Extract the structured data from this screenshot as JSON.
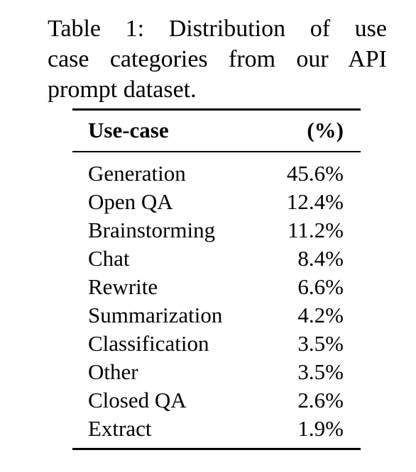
{
  "caption": {
    "lines": [
      "Table 1: Distribution of use",
      "case categories from our API",
      "prompt dataset."
    ]
  },
  "table": {
    "headers": {
      "use_case": "Use-case",
      "percent": "(%)"
    },
    "rows": [
      {
        "use_case": "Generation",
        "percent": "45.6%"
      },
      {
        "use_case": "Open QA",
        "percent": "12.4%"
      },
      {
        "use_case": "Brainstorming",
        "percent": "11.2%"
      },
      {
        "use_case": "Chat",
        "percent": "8.4%"
      },
      {
        "use_case": "Rewrite",
        "percent": "6.6%"
      },
      {
        "use_case": "Summarization",
        "percent": "4.2%"
      },
      {
        "use_case": "Classification",
        "percent": "3.5%"
      },
      {
        "use_case": "Other",
        "percent": "3.5%"
      },
      {
        "use_case": "Closed QA",
        "percent": "2.6%"
      },
      {
        "use_case": "Extract",
        "percent": "1.9%"
      }
    ]
  }
}
